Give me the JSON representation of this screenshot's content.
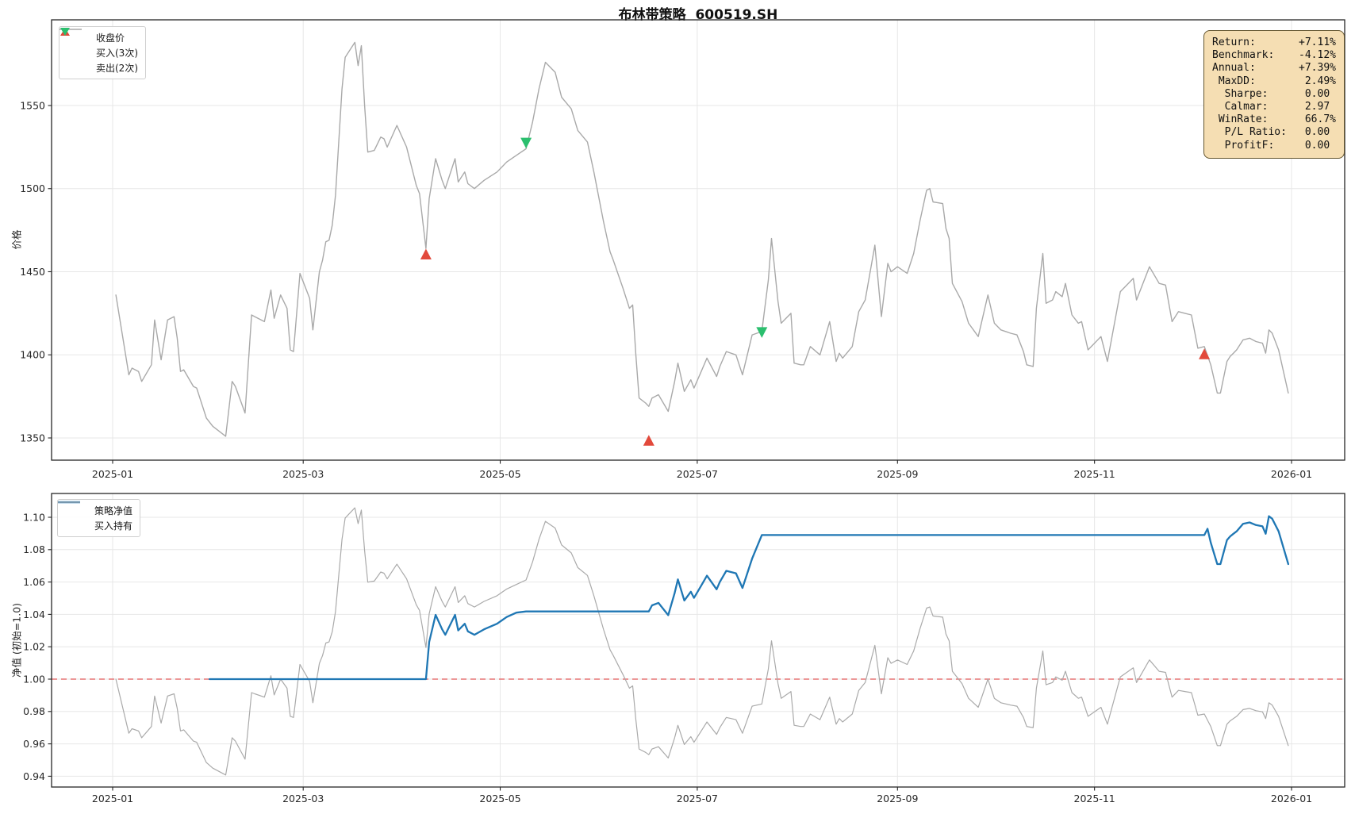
{
  "title": "布林带策略  600519.SH",
  "top_chart": {
    "ylabel": "价格",
    "legend": [
      "收盘价",
      "买入(3次)",
      "卖出(2次)"
    ]
  },
  "bottom_chart": {
    "ylabel": "净值 (初始=1.0)",
    "legend": [
      "策略净值",
      "买入持有"
    ]
  },
  "stats": {
    "rows": [
      {
        "label": "Return:",
        "value": "+7.11%"
      },
      {
        "label": "Benchmark:",
        "value": "-4.12%"
      },
      {
        "label": "Annual:",
        "value": "+7.39%"
      },
      {
        "label": " MaxDD:",
        "value": "2.49%"
      },
      {
        "label": "  Sharpe:",
        "value": "0.00"
      },
      {
        "label": "  Calmar:",
        "value": "2.97"
      },
      {
        "label": " WinRate:",
        "value": "66.7%"
      },
      {
        "label": "  P/L Ratio:",
        "value": "0.00"
      },
      {
        "label": "  ProfitF:",
        "value": "0.00"
      }
    ]
  },
  "colors": {
    "price": "#a9a9a9",
    "strategy": "#1f77b4",
    "benchmark": "#aaaaaa",
    "buy": "#e2493b",
    "sell": "#2bbf6e",
    "baseline": "#e57575",
    "grid": "#e7e7e7",
    "spine": "#262626"
  },
  "chart_data": [
    {
      "type": "line",
      "title": "布林带策略  600519.SH",
      "ylabel": "价格",
      "x_unit": "day offset from 2025-01-01",
      "x_ticks": {
        "days": [
          0,
          59,
          120,
          181,
          243,
          304,
          365
        ],
        "labels": [
          "2025-01",
          "2025-03",
          "2025-05",
          "2025-07",
          "2025-09",
          "2025-11",
          "2026-01"
        ]
      },
      "y_ticks": [
        1350,
        1400,
        1450,
        1500,
        1550
      ],
      "ylim": [
        1336,
        1602
      ],
      "grid": true,
      "legend_position": "upper left",
      "series": [
        {
          "name": "收盘价",
          "points": [
            [
              1,
              1436
            ],
            [
              5,
              1388
            ],
            [
              6,
              1392
            ],
            [
              8,
              1390
            ],
            [
              9,
              1384
            ],
            [
              12,
              1394
            ],
            [
              13,
              1421
            ],
            [
              15,
              1397
            ],
            [
              17,
              1421
            ],
            [
              19,
              1423
            ],
            [
              20,
              1410
            ],
            [
              21,
              1390
            ],
            [
              22,
              1391
            ],
            [
              25,
              1381
            ],
            [
              26,
              1380
            ],
            [
              29,
              1362
            ],
            [
              31,
              1357
            ],
            [
              35,
              1351
            ],
            [
              37,
              1384
            ],
            [
              38,
              1381
            ],
            [
              41,
              1365
            ],
            [
              43,
              1424
            ],
            [
              44,
              1423
            ],
            [
              47,
              1420
            ],
            [
              49,
              1439
            ],
            [
              50,
              1422
            ],
            [
              52,
              1436
            ],
            [
              54,
              1428
            ],
            [
              55,
              1403
            ],
            [
              56,
              1402
            ],
            [
              58,
              1449
            ],
            [
              61,
              1434
            ],
            [
              62,
              1415
            ],
            [
              64,
              1450
            ],
            [
              65,
              1457
            ],
            [
              66,
              1468
            ],
            [
              67,
              1469
            ],
            [
              68,
              1478
            ],
            [
              69,
              1496
            ],
            [
              71,
              1560
            ],
            [
              72,
              1579
            ],
            [
              75,
              1588
            ],
            [
              76,
              1574
            ],
            [
              77,
              1586
            ],
            [
              78,
              1550
            ],
            [
              79,
              1522
            ],
            [
              81,
              1523
            ],
            [
              83,
              1531
            ],
            [
              84,
              1530
            ],
            [
              85,
              1525
            ],
            [
              88,
              1538
            ],
            [
              91,
              1525
            ],
            [
              94,
              1502
            ],
            [
              95,
              1497
            ],
            [
              97,
              1464
            ],
            [
              98,
              1494
            ],
            [
              100,
              1518
            ],
            [
              102,
              1505
            ],
            [
              103,
              1500
            ],
            [
              106,
              1518
            ],
            [
              107,
              1504
            ],
            [
              109,
              1510
            ],
            [
              110,
              1503
            ],
            [
              112,
              1500
            ],
            [
              115,
              1505
            ],
            [
              119,
              1510
            ],
            [
              122,
              1516
            ],
            [
              125,
              1520
            ],
            [
              128,
              1524
            ],
            [
              130,
              1540
            ],
            [
              132,
              1560
            ],
            [
              134,
              1576
            ],
            [
              137,
              1570
            ],
            [
              139,
              1555
            ],
            [
              142,
              1548
            ],
            [
              144,
              1535
            ],
            [
              147,
              1528
            ],
            [
              149,
              1510
            ],
            [
              152,
              1480
            ],
            [
              154,
              1462
            ],
            [
              155,
              1457
            ],
            [
              158,
              1440
            ],
            [
              160,
              1428
            ],
            [
              161,
              1430
            ],
            [
              162,
              1400
            ],
            [
              163,
              1374
            ],
            [
              165,
              1371
            ],
            [
              166,
              1369
            ],
            [
              167,
              1374
            ],
            [
              169,
              1376
            ],
            [
              172,
              1366
            ],
            [
              174,
              1384
            ],
            [
              175,
              1395
            ],
            [
              177,
              1378
            ],
            [
              179,
              1385
            ],
            [
              180,
              1380
            ],
            [
              182,
              1389
            ],
            [
              184,
              1398
            ],
            [
              187,
              1387
            ],
            [
              188,
              1393
            ],
            [
              190,
              1402
            ],
            [
              193,
              1400
            ],
            [
              195,
              1388
            ],
            [
              198,
              1412
            ],
            [
              201,
              1414
            ],
            [
              203,
              1445
            ],
            [
              204,
              1470
            ],
            [
              206,
              1432
            ],
            [
              207,
              1419
            ],
            [
              210,
              1425
            ],
            [
              211,
              1395
            ],
            [
              213,
              1394
            ],
            [
              214,
              1394
            ],
            [
              216,
              1405
            ],
            [
              219,
              1400
            ],
            [
              222,
              1420
            ],
            [
              224,
              1396
            ],
            [
              225,
              1401
            ],
            [
              226,
              1398
            ],
            [
              229,
              1405
            ],
            [
              231,
              1426
            ],
            [
              233,
              1433
            ],
            [
              236,
              1466
            ],
            [
              238,
              1423
            ],
            [
              240,
              1455
            ],
            [
              241,
              1450
            ],
            [
              243,
              1453
            ],
            [
              246,
              1449
            ],
            [
              248,
              1461
            ],
            [
              250,
              1481
            ],
            [
              252,
              1499
            ],
            [
              253,
              1500
            ],
            [
              254,
              1492
            ],
            [
              257,
              1491
            ],
            [
              258,
              1476
            ],
            [
              259,
              1470
            ],
            [
              260,
              1443
            ],
            [
              263,
              1432
            ],
            [
              265,
              1419
            ],
            [
              268,
              1411
            ],
            [
              271,
              1436
            ],
            [
              273,
              1419
            ],
            [
              275,
              1415
            ],
            [
              278,
              1413
            ],
            [
              280,
              1412
            ],
            [
              282,
              1402
            ],
            [
              283,
              1394
            ],
            [
              285,
              1393
            ],
            [
              286,
              1428
            ],
            [
              288,
              1461
            ],
            [
              289,
              1431
            ],
            [
              291,
              1433
            ],
            [
              292,
              1438
            ],
            [
              294,
              1435
            ],
            [
              295,
              1443
            ],
            [
              297,
              1424
            ],
            [
              299,
              1419
            ],
            [
              300,
              1420
            ],
            [
              302,
              1403
            ],
            [
              306,
              1411
            ],
            [
              308,
              1396
            ],
            [
              312,
              1438
            ],
            [
              316,
              1446
            ],
            [
              317,
              1433
            ],
            [
              321,
              1453
            ],
            [
              324,
              1443
            ],
            [
              326,
              1442
            ],
            [
              328,
              1420
            ],
            [
              330,
              1426
            ],
            [
              332,
              1425
            ],
            [
              334,
              1424
            ],
            [
              336,
              1404
            ],
            [
              338,
              1405
            ],
            [
              340,
              1394
            ],
            [
              342,
              1377
            ],
            [
              343,
              1377
            ],
            [
              345,
              1396
            ],
            [
              346,
              1399
            ],
            [
              347,
              1401
            ],
            [
              348,
              1403
            ],
            [
              350,
              1409
            ],
            [
              352,
              1410
            ],
            [
              354,
              1408
            ],
            [
              356,
              1407
            ],
            [
              357,
              1401
            ],
            [
              358,
              1415
            ],
            [
              359,
              1413
            ],
            [
              361,
              1403
            ],
            [
              364,
              1377
            ]
          ]
        }
      ],
      "buy_markers": [
        [
          97,
          1460
        ],
        [
          166,
          1348
        ],
        [
          338,
          1400
        ]
      ],
      "sell_markers": [
        [
          128,
          1528
        ],
        [
          201,
          1414
        ]
      ]
    },
    {
      "type": "line",
      "ylabel": "净值 (初始=1.0)",
      "x_unit": "day offset from 2025-01-01",
      "x_ticks": {
        "days": [
          0,
          59,
          120,
          181,
          243,
          304,
          365
        ],
        "labels": [
          "2025-01",
          "2025-03",
          "2025-05",
          "2025-07",
          "2025-09",
          "2025-11",
          "2026-01"
        ]
      },
      "y_ticks": [
        0.94,
        0.96,
        0.98,
        1.0,
        1.02,
        1.04,
        1.06,
        1.08,
        1.1
      ],
      "ylim": [
        0.9333,
        1.1147
      ],
      "grid": true,
      "baseline": 1.0,
      "legend_position": "upper left",
      "series": [
        {
          "name": "策略净值",
          "points": [
            [
              30,
              1.0
            ],
            [
              97,
              1.0
            ],
            [
              98,
              1.023
            ],
            [
              100,
              1.0397
            ],
            [
              102,
              1.0308
            ],
            [
              103,
              1.0274
            ],
            [
              106,
              1.0397
            ],
            [
              107,
              1.0301
            ],
            [
              109,
              1.0342
            ],
            [
              110,
              1.0295
            ],
            [
              112,
              1.0274
            ],
            [
              115,
              1.0308
            ],
            [
              119,
              1.0342
            ],
            [
              122,
              1.0384
            ],
            [
              125,
              1.0411
            ],
            [
              128,
              1.0418
            ],
            [
              166,
              1.0418
            ],
            [
              167,
              1.0456
            ],
            [
              169,
              1.0471
            ],
            [
              172,
              1.0395
            ],
            [
              174,
              1.0532
            ],
            [
              175,
              1.0616
            ],
            [
              177,
              1.0486
            ],
            [
              179,
              1.054
            ],
            [
              180,
              1.0502
            ],
            [
              182,
              1.057
            ],
            [
              184,
              1.0639
            ],
            [
              187,
              1.0555
            ],
            [
              188,
              1.0601
            ],
            [
              190,
              1.0669
            ],
            [
              193,
              1.0654
            ],
            [
              195,
              1.0563
            ],
            [
              198,
              1.0745
            ],
            [
              201,
              1.089
            ],
            [
              338,
              1.089
            ],
            [
              339,
              1.0929
            ],
            [
              340,
              1.0843
            ],
            [
              342,
              1.0711
            ],
            [
              343,
              1.0711
            ],
            [
              345,
              1.0859
            ],
            [
              346,
              1.0882
            ],
            [
              347,
              1.0898
            ],
            [
              348,
              1.0913
            ],
            [
              350,
              1.096
            ],
            [
              352,
              1.0968
            ],
            [
              354,
              1.0952
            ],
            [
              356,
              1.0944
            ],
            [
              357,
              1.0898
            ],
            [
              358,
              1.1007
            ],
            [
              359,
              1.0991
            ],
            [
              361,
              1.0913
            ],
            [
              364,
              1.0711
            ]
          ]
        },
        {
          "name": "买入持有",
          "derived": "price_series_normalized_to_first_value"
        }
      ]
    }
  ]
}
